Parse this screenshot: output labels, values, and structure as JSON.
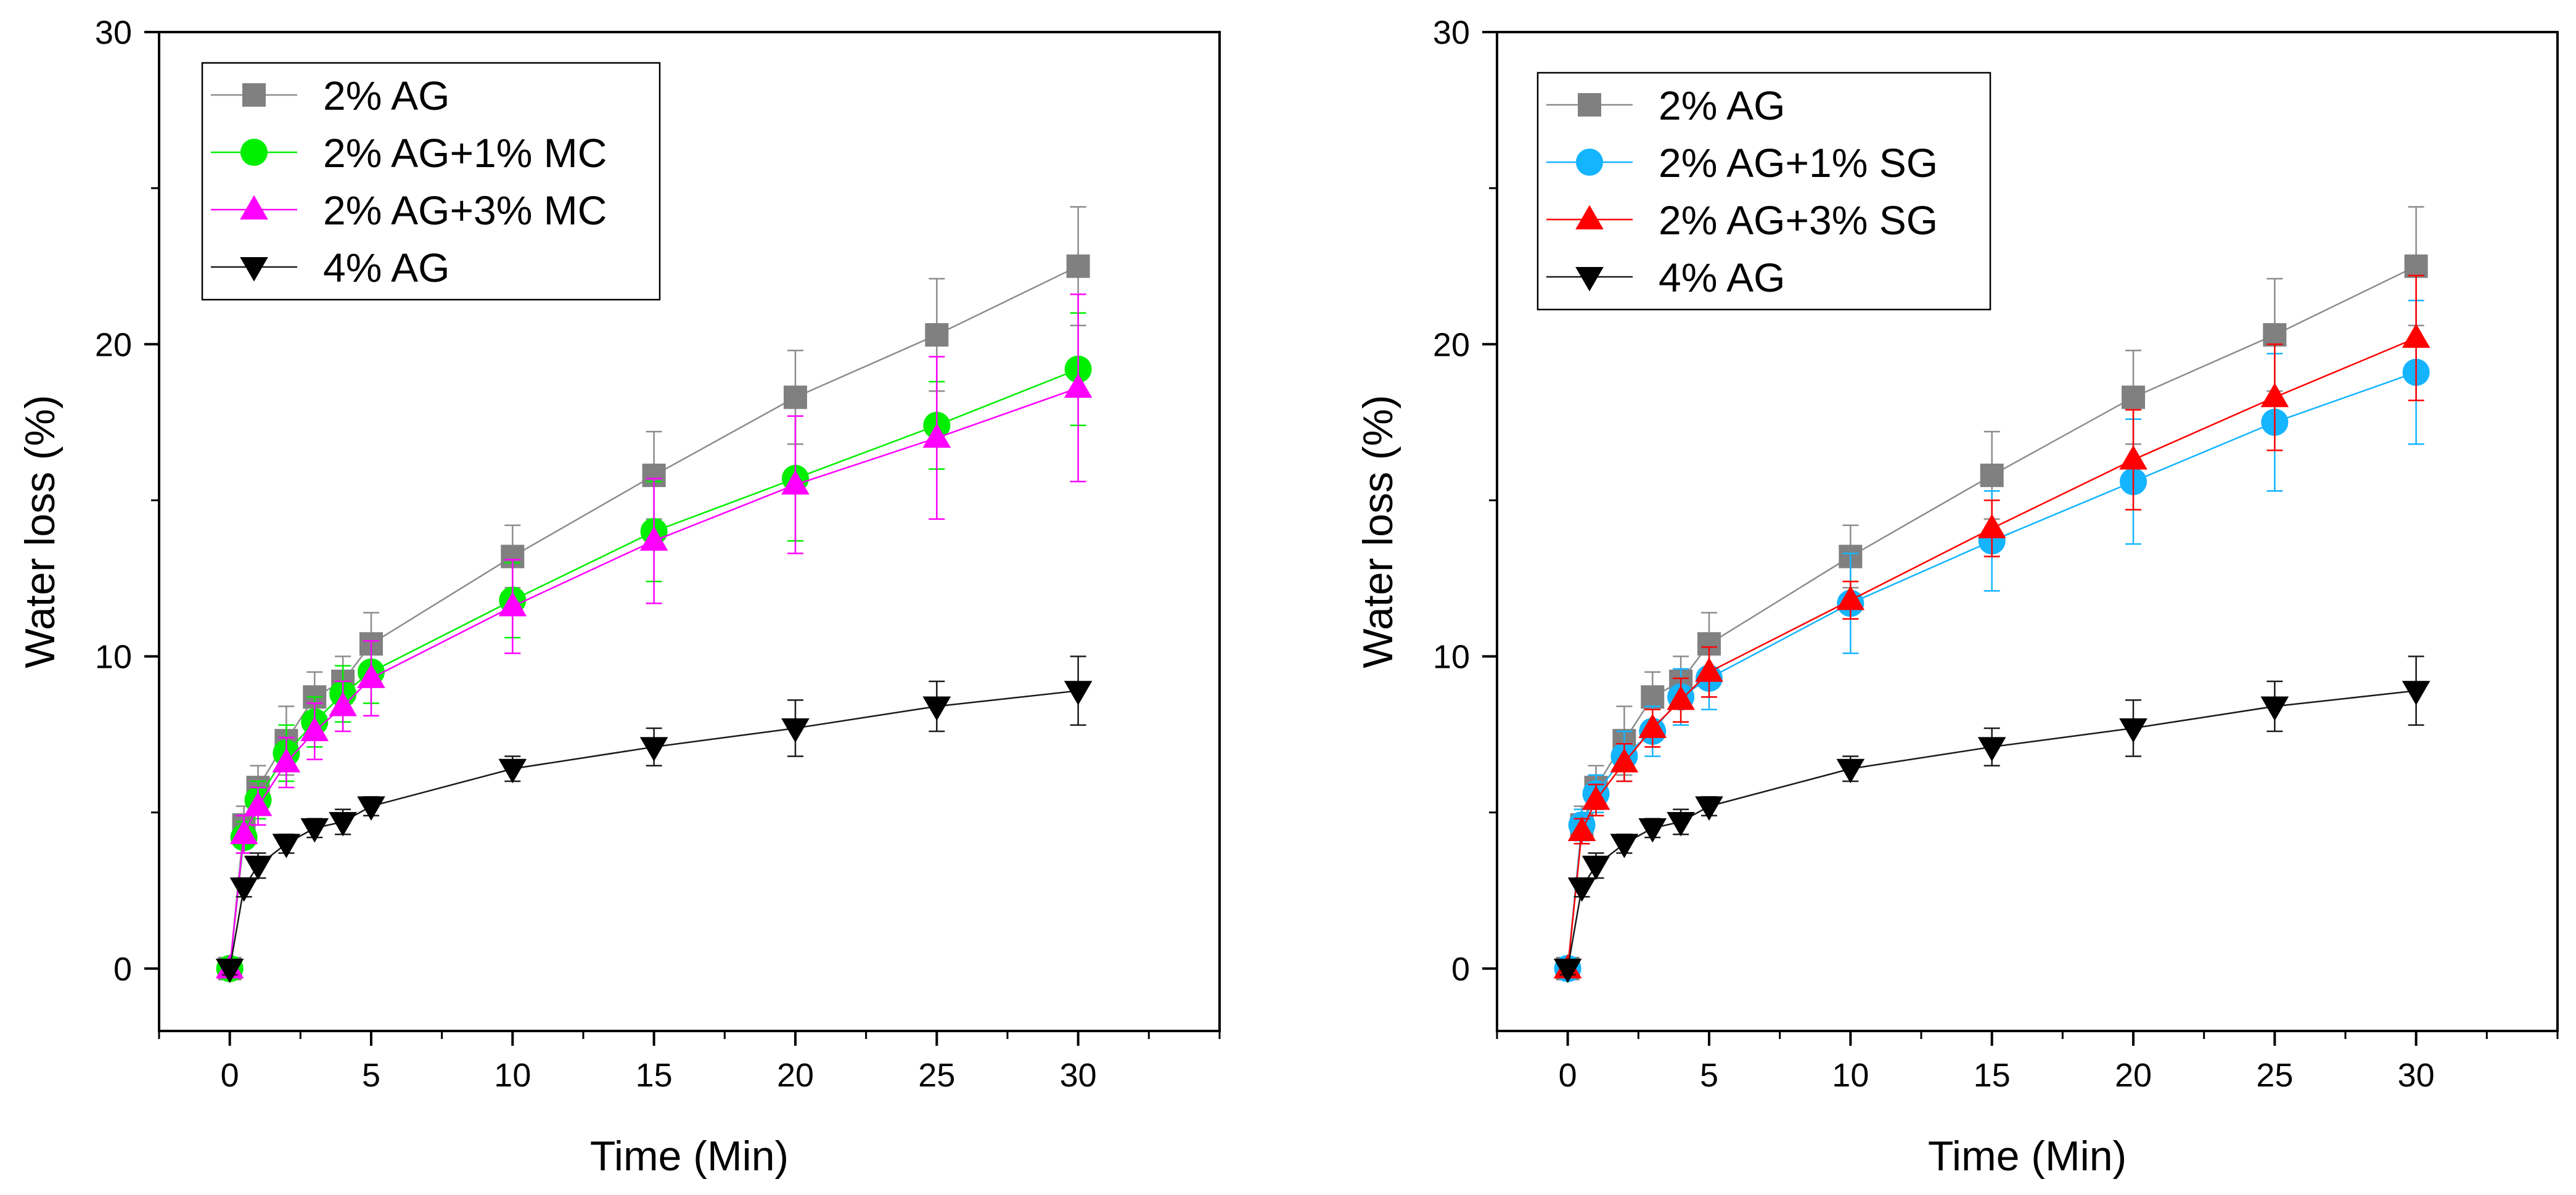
{
  "chart_data": [
    {
      "type": "line",
      "title": "",
      "xlabel": "Time (Min)",
      "ylabel": "Water loss (%)",
      "xlim": [
        -2.5,
        35
      ],
      "ylim": [
        -2,
        30
      ],
      "xticks": [
        0,
        5,
        10,
        15,
        20,
        25,
        30
      ],
      "yticks": [
        0,
        10,
        20,
        30
      ],
      "legend_position": "top-left",
      "x": [
        0,
        0.5,
        1,
        2,
        3,
        4,
        5,
        10,
        15,
        20,
        25,
        30
      ],
      "series": [
        {
          "name": "2% AG",
          "color": "#808080",
          "line_color": "#8c8c8c",
          "marker": "square",
          "values": [
            0,
            4.6,
            5.8,
            7.3,
            8.7,
            9.2,
            10.4,
            13.2,
            15.8,
            18.3,
            20.3,
            22.5
          ],
          "errors": [
            0.2,
            0.6,
            0.7,
            1.1,
            0.8,
            0.8,
            1.0,
            1.0,
            1.4,
            1.5,
            1.8,
            1.9
          ]
        },
        {
          "name": "2% AG+1% MC",
          "color": "#00ee00",
          "line_color": "#00ee00",
          "marker": "circle",
          "values": [
            0,
            4.2,
            5.4,
            6.9,
            7.9,
            8.8,
            9.5,
            11.8,
            14.0,
            15.7,
            17.4,
            19.2
          ],
          "errors": [
            0.2,
            0.5,
            0.6,
            0.9,
            0.8,
            0.9,
            1.0,
            1.2,
            1.6,
            2.0,
            1.4,
            1.8
          ]
        },
        {
          "name": "2% AG+3% MC",
          "color": "#ff00ff",
          "line_color": "#ff00ff",
          "marker": "triangle-up",
          "values": [
            0,
            4.3,
            5.2,
            6.6,
            7.6,
            8.4,
            9.3,
            11.6,
            13.7,
            15.5,
            17.0,
            18.6
          ],
          "errors": [
            0.2,
            0.6,
            0.6,
            0.8,
            0.9,
            0.8,
            1.2,
            1.5,
            2.0,
            2.2,
            2.6,
            3.0
          ]
        },
        {
          "name": "4% AG",
          "color": "#000000",
          "line_color": "#1a1a1a",
          "marker": "triangle-down",
          "values": [
            0,
            2.6,
            3.3,
            4.0,
            4.5,
            4.7,
            5.2,
            6.4,
            7.1,
            7.7,
            8.4,
            8.9
          ],
          "errors": [
            0.2,
            0.3,
            0.4,
            0.3,
            0.3,
            0.4,
            0.3,
            0.4,
            0.6,
            0.9,
            0.8,
            1.1
          ]
        }
      ]
    },
    {
      "type": "line",
      "title": "",
      "xlabel": "Time (Min)",
      "ylabel": "Water loss (%)",
      "xlim": [
        -2.5,
        35
      ],
      "ylim": [
        -2,
        30
      ],
      "xticks": [
        0,
        5,
        10,
        15,
        20,
        25,
        30
      ],
      "yticks": [
        0,
        10,
        20,
        30
      ],
      "legend_position": "top-left",
      "x": [
        0,
        0.5,
        1,
        2,
        3,
        4,
        5,
        10,
        15,
        20,
        25,
        30
      ],
      "series": [
        {
          "name": "2% AG",
          "color": "#808080",
          "line_color": "#8c8c8c",
          "marker": "square",
          "values": [
            0,
            4.6,
            5.8,
            7.3,
            8.7,
            9.2,
            10.4,
            13.2,
            15.8,
            18.3,
            20.3,
            22.5
          ],
          "errors": [
            0.2,
            0.6,
            0.7,
            1.1,
            0.8,
            0.8,
            1.0,
            1.0,
            1.4,
            1.5,
            1.8,
            1.9
          ]
        },
        {
          "name": "2% AG+1% SG",
          "color": "#14b4ff",
          "line_color": "#14b4ff",
          "marker": "circle",
          "values": [
            0,
            4.6,
            5.6,
            6.8,
            7.6,
            8.7,
            9.3,
            11.7,
            13.7,
            15.6,
            17.5,
            19.1
          ],
          "errors": [
            0.2,
            0.5,
            0.6,
            0.8,
            0.8,
            0.9,
            1.0,
            1.6,
            1.6,
            2.0,
            2.2,
            2.3
          ]
        },
        {
          "name": "2% AG+3% SG",
          "color": "#ff0000",
          "line_color": "#ff0000",
          "marker": "triangle-up",
          "values": [
            0,
            4.4,
            5.4,
            6.6,
            7.7,
            8.6,
            9.5,
            11.8,
            14.1,
            16.3,
            18.3,
            20.2
          ],
          "errors": [
            0.2,
            0.4,
            0.5,
            0.6,
            0.6,
            0.7,
            0.8,
            0.6,
            0.9,
            1.6,
            1.7,
            2.0
          ]
        },
        {
          "name": "4% AG",
          "color": "#000000",
          "line_color": "#1a1a1a",
          "marker": "triangle-down",
          "values": [
            0,
            2.6,
            3.3,
            4.0,
            4.5,
            4.7,
            5.2,
            6.4,
            7.1,
            7.7,
            8.4,
            8.9
          ],
          "errors": [
            0.2,
            0.3,
            0.4,
            0.3,
            0.3,
            0.4,
            0.3,
            0.4,
            0.6,
            0.9,
            0.8,
            1.1
          ]
        }
      ]
    }
  ]
}
